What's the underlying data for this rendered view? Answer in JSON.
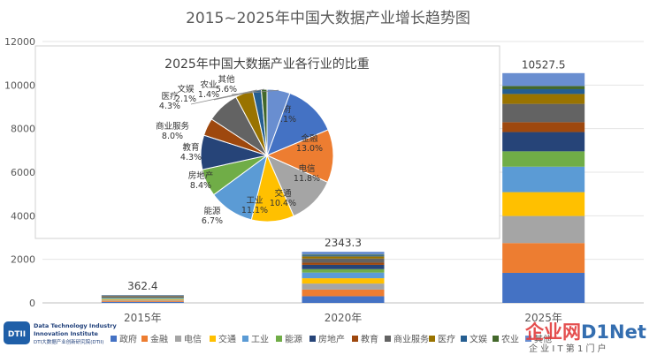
{
  "chart_data": [
    {
      "type": "bar",
      "stacked": true,
      "title": "2015~2025年中国大数据产业增长趋势图",
      "categories": [
        "2015年",
        "2020年",
        "2025年"
      ],
      "totals": [
        362.4,
        2343.3,
        10527.5
      ],
      "total_labels": [
        "362.4",
        "2343.3",
        "10527.5"
      ],
      "ylim": [
        0,
        12000
      ],
      "yticks": [
        0,
        2000,
        4000,
        6000,
        8000,
        10000,
        12000
      ],
      "grid": true,
      "legend_position": "bottom",
      "series": [
        {
          "name": "政府",
          "color": "#4472C4",
          "share": 0.131
        },
        {
          "name": "金融",
          "color": "#ED7D31",
          "share": 0.13
        },
        {
          "name": "电信",
          "color": "#A5A5A5",
          "share": 0.118
        },
        {
          "name": "交通",
          "color": "#FFC000",
          "share": 0.104
        },
        {
          "name": "工业",
          "color": "#5B9BD5",
          "share": 0.111
        },
        {
          "name": "能源",
          "color": "#70AD47",
          "share": 0.067
        },
        {
          "name": "房地产",
          "color": "#264478",
          "share": 0.084
        },
        {
          "name": "教育",
          "color": "#9E480E",
          "share": 0.043
        },
        {
          "name": "商业服务",
          "color": "#636363",
          "share": 0.08
        },
        {
          "name": "医疗",
          "color": "#997300",
          "share": 0.043
        },
        {
          "name": "文娱",
          "color": "#255E91",
          "share": 0.021
        },
        {
          "name": "农业",
          "color": "#43682B",
          "share": 0.014
        },
        {
          "name": "其他",
          "color": "#698ED0",
          "share": 0.056
        }
      ]
    },
    {
      "type": "pie",
      "title": "2025年中国大数据产业各行业的比重",
      "slices": [
        {
          "name": "政府",
          "value": 13.1,
          "label": "13.1%",
          "color": "#4472C4"
        },
        {
          "name": "金融",
          "value": 13.0,
          "label": "13.0%",
          "color": "#ED7D31"
        },
        {
          "name": "电信",
          "value": 11.8,
          "label": "11.8%",
          "color": "#A5A5A5"
        },
        {
          "name": "交通",
          "value": 10.4,
          "label": "10.4%",
          "color": "#FFC000"
        },
        {
          "name": "工业",
          "value": 11.1,
          "label": "11.1%",
          "color": "#5B9BD5"
        },
        {
          "name": "能源",
          "value": 6.7,
          "label": "6.7%",
          "color": "#70AD47"
        },
        {
          "name": "房地产",
          "value": 8.4,
          "label": "8.4%",
          "color": "#264478"
        },
        {
          "name": "教育",
          "value": 4.3,
          "label": "4.3%",
          "color": "#9E480E"
        },
        {
          "name": "商业服务",
          "value": 8.0,
          "label": "8.0%",
          "color": "#636363"
        },
        {
          "name": "医疗",
          "value": 4.3,
          "label": "4.3%",
          "color": "#997300"
        },
        {
          "name": "文娱",
          "value": 2.1,
          "label": "2.1%",
          "color": "#255E91"
        },
        {
          "name": "农业",
          "value": 1.4,
          "label": "1.4%",
          "color": "#43682B"
        },
        {
          "name": "其他",
          "value": 5.6,
          "label": "5.6%",
          "color": "#698ED0"
        }
      ]
    }
  ],
  "logo": {
    "mark": "DTII",
    "line1": "Data Technology Industry",
    "line2": "Innovation Institute",
    "line3": "DTI大数据产业创新研究院(DTII)"
  },
  "watermark": {
    "brand_left": "企业网",
    "brand_right": "D1Net",
    "tagline": "企 业 I T 第 1 门 户"
  }
}
